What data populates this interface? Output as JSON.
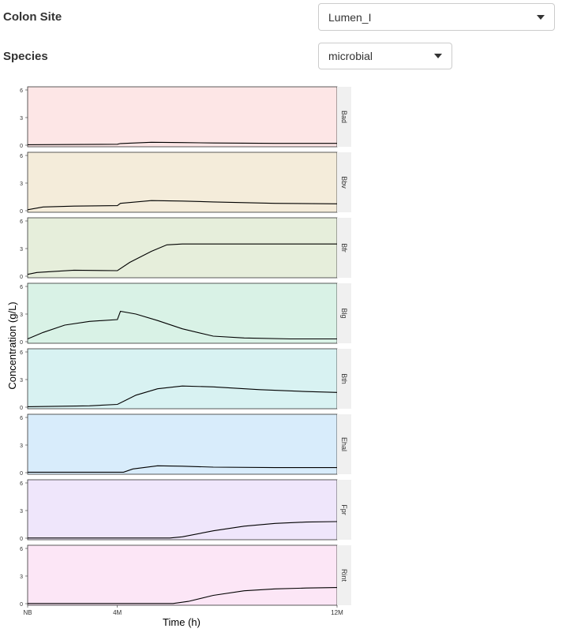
{
  "controls": {
    "colon_site": {
      "label": "Colon Site",
      "value": "Lumen_I"
    },
    "species": {
      "label": "Species",
      "value": "microbial"
    }
  },
  "chart_data": {
    "type": "line",
    "xlabel": "Time (h)",
    "ylabel": "Concentration (g/L)",
    "ylim": [
      0,
      6
    ],
    "yticks": [
      0,
      3,
      6
    ],
    "x_range": [
      0,
      1
    ],
    "xticks": [
      {
        "x": 0,
        "label": "NB"
      },
      {
        "x": 0.29,
        "label": "4M"
      },
      {
        "x": 1,
        "label": "12M"
      }
    ],
    "line_color": "#000000",
    "grid": false,
    "panels": [
      {
        "name": "Bad",
        "fill": "#fde6e6",
        "points": [
          [
            0,
            0.05
          ],
          [
            0.29,
            0.1
          ],
          [
            0.3,
            0.18
          ],
          [
            0.4,
            0.32
          ],
          [
            0.5,
            0.28
          ],
          [
            0.6,
            0.24
          ],
          [
            0.8,
            0.2
          ],
          [
            1,
            0.2
          ]
        ]
      },
      {
        "name": "Bbv",
        "fill": "#f4ecda",
        "points": [
          [
            0,
            0.1
          ],
          [
            0.05,
            0.4
          ],
          [
            0.15,
            0.5
          ],
          [
            0.29,
            0.55
          ],
          [
            0.3,
            0.8
          ],
          [
            0.4,
            1.1
          ],
          [
            0.5,
            1.05
          ],
          [
            0.6,
            0.95
          ],
          [
            0.8,
            0.8
          ],
          [
            1,
            0.75
          ]
        ]
      },
      {
        "name": "Bfr",
        "fill": "#e6eedb",
        "points": [
          [
            0,
            0.2
          ],
          [
            0.03,
            0.4
          ],
          [
            0.15,
            0.65
          ],
          [
            0.29,
            0.6
          ],
          [
            0.33,
            1.5
          ],
          [
            0.4,
            2.7
          ],
          [
            0.45,
            3.4
          ],
          [
            0.5,
            3.5
          ],
          [
            0.7,
            3.5
          ],
          [
            1,
            3.5
          ]
        ]
      },
      {
        "name": "Blg",
        "fill": "#d9f2e6",
        "points": [
          [
            0,
            0.3
          ],
          [
            0.05,
            1.0
          ],
          [
            0.12,
            1.8
          ],
          [
            0.2,
            2.2
          ],
          [
            0.29,
            2.4
          ],
          [
            0.3,
            3.3
          ],
          [
            0.35,
            3.0
          ],
          [
            0.42,
            2.3
          ],
          [
            0.5,
            1.4
          ],
          [
            0.6,
            0.6
          ],
          [
            0.7,
            0.4
          ],
          [
            0.85,
            0.3
          ],
          [
            1,
            0.3
          ]
        ]
      },
      {
        "name": "Bth",
        "fill": "#d8f2f2",
        "points": [
          [
            0,
            0.05
          ],
          [
            0.2,
            0.15
          ],
          [
            0.29,
            0.3
          ],
          [
            0.35,
            1.3
          ],
          [
            0.42,
            2.0
          ],
          [
            0.5,
            2.3
          ],
          [
            0.6,
            2.2
          ],
          [
            0.75,
            1.9
          ],
          [
            0.9,
            1.7
          ],
          [
            1,
            1.6
          ]
        ]
      },
      {
        "name": "Ehal",
        "fill": "#d8ecfb",
        "points": [
          [
            0,
            0.05
          ],
          [
            0.31,
            0.05
          ],
          [
            0.34,
            0.4
          ],
          [
            0.42,
            0.75
          ],
          [
            0.5,
            0.7
          ],
          [
            0.6,
            0.6
          ],
          [
            0.8,
            0.55
          ],
          [
            1,
            0.55
          ]
        ]
      },
      {
        "name": "Fpr",
        "fill": "#efe6fb",
        "points": [
          [
            0,
            0.02
          ],
          [
            0.46,
            0.02
          ],
          [
            0.5,
            0.15
          ],
          [
            0.6,
            0.8
          ],
          [
            0.7,
            1.3
          ],
          [
            0.8,
            1.6
          ],
          [
            0.9,
            1.75
          ],
          [
            1,
            1.8
          ]
        ]
      },
      {
        "name": "Rint",
        "fill": "#fce6f6",
        "points": [
          [
            0,
            0.02
          ],
          [
            0.47,
            0.02
          ],
          [
            0.52,
            0.25
          ],
          [
            0.6,
            0.9
          ],
          [
            0.7,
            1.4
          ],
          [
            0.8,
            1.6
          ],
          [
            0.9,
            1.7
          ],
          [
            1,
            1.75
          ]
        ]
      }
    ]
  }
}
